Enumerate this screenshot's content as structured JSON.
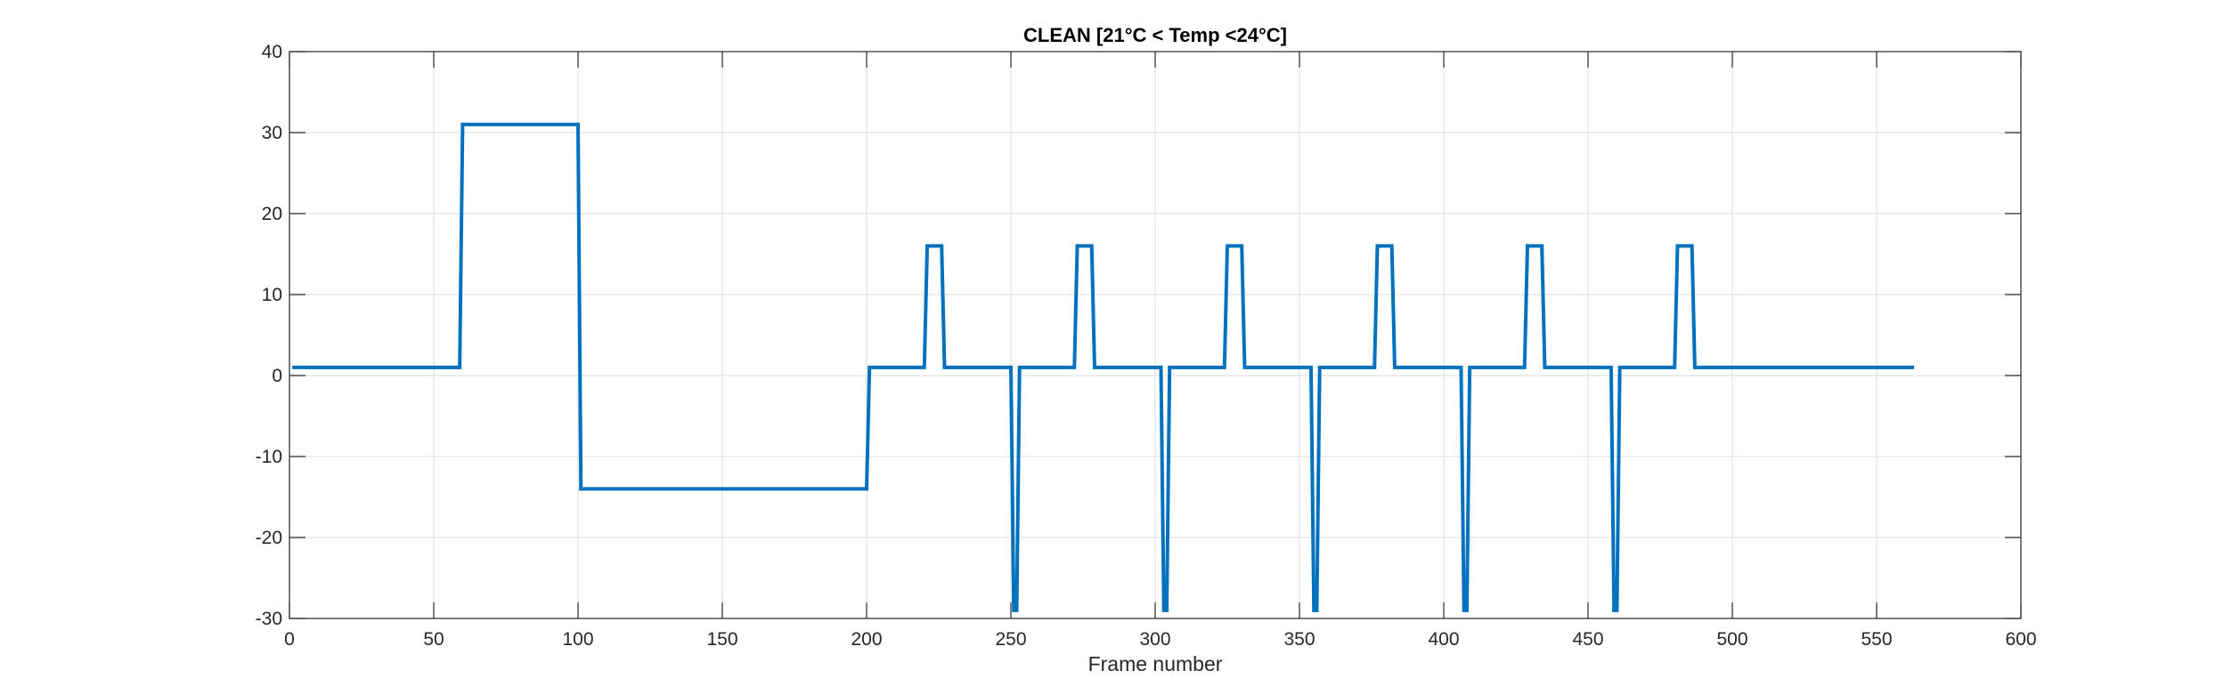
{
  "chart_data": {
    "type": "line",
    "title": "CLEAN [21°C < Temp <24°C]",
    "xlabel": "Frame number",
    "ylabel": "",
    "xlim": [
      0,
      600
    ],
    "ylim": [
      -30,
      40
    ],
    "xticks": [
      0,
      50,
      100,
      150,
      200,
      250,
      300,
      350,
      400,
      450,
      500,
      550,
      600
    ],
    "yticks": [
      -30,
      -20,
      -10,
      0,
      10,
      20,
      30,
      40
    ],
    "grid": true,
    "line_color": "#0072BD",
    "series": [
      {
        "x": [
          1,
          59,
          60,
          100,
          101,
          200,
          201,
          220,
          221,
          226,
          227,
          250,
          251,
          252,
          253,
          272,
          273,
          278,
          279,
          302,
          303,
          304,
          305,
          324,
          325,
          330,
          331,
          354,
          355,
          356,
          357,
          376,
          377,
          382,
          383,
          406,
          407,
          408,
          409,
          428,
          429,
          434,
          435,
          458,
          459,
          460,
          461,
          480,
          481,
          486,
          487,
          563
        ],
        "y": [
          1,
          1,
          31,
          31,
          -14,
          -14,
          1,
          1,
          16,
          16,
          1,
          1,
          -29,
          -29,
          1,
          1,
          16,
          16,
          1,
          1,
          -29,
          -29,
          1,
          1,
          16,
          16,
          1,
          1,
          -29,
          -29,
          1,
          1,
          16,
          16,
          1,
          1,
          -29,
          -29,
          1,
          1,
          16,
          16,
          1,
          1,
          -29,
          -29,
          1,
          1,
          16,
          16,
          1,
          1
        ]
      }
    ]
  }
}
